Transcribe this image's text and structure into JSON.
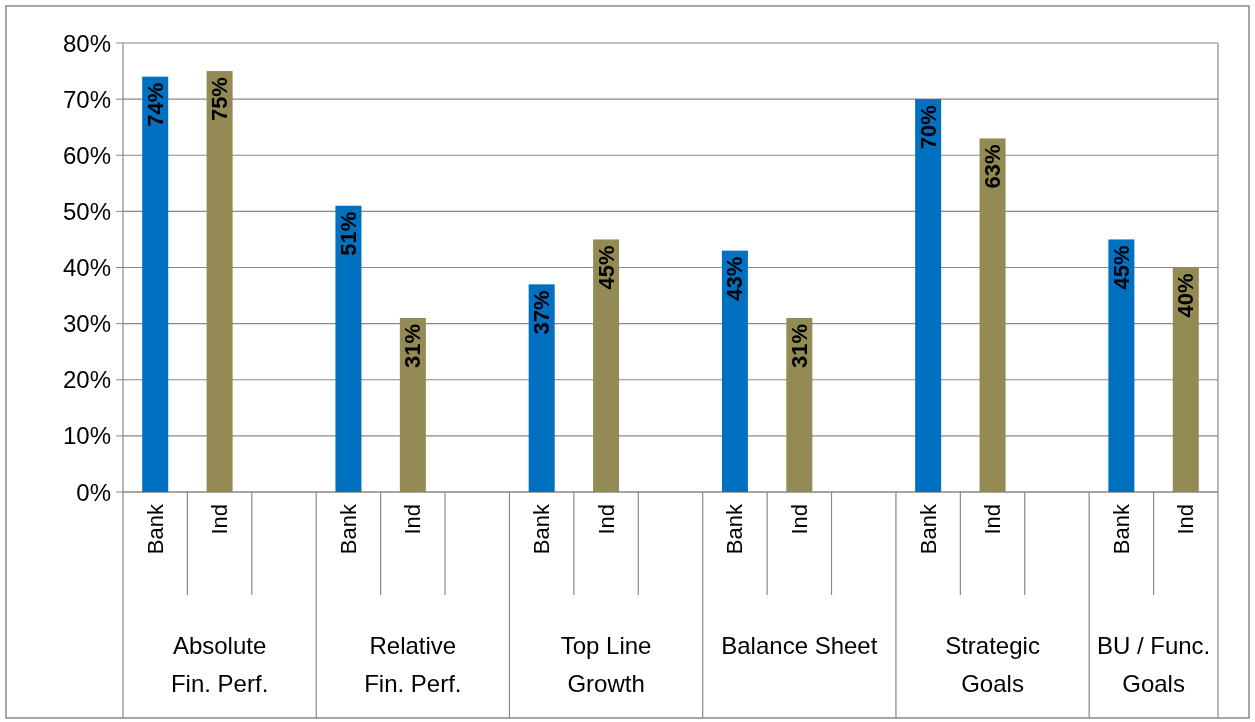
{
  "chart_data": {
    "type": "bar",
    "categories": [
      "Bank",
      "Ind",
      null,
      "Bank",
      "Ind",
      null,
      "Bank",
      "Ind",
      null,
      "Bank",
      "Ind",
      null,
      "Bank",
      "Ind",
      null,
      "Bank",
      "Ind"
    ],
    "values": [
      74,
      75,
      null,
      51,
      31,
      null,
      37,
      45,
      null,
      43,
      31,
      null,
      70,
      63,
      null,
      45,
      40
    ],
    "colors": [
      "#0070c0",
      "#948a54",
      null,
      "#0070c0",
      "#948a54",
      null,
      "#0070c0",
      "#948a54",
      null,
      "#0070c0",
      "#948a54",
      null,
      "#0070c0",
      "#948a54",
      null,
      "#0070c0",
      "#948a54"
    ],
    "value_labels": [
      "74%",
      "75%",
      null,
      "51%",
      "31%",
      null,
      "37%",
      "45%",
      null,
      "43%",
      "31%",
      null,
      "70%",
      "63%",
      null,
      "45%",
      "40%"
    ],
    "annotations": [
      "Absolute\nFin. Perf.",
      "Relative\nFin. Perf.",
      "Top Line\nGrowth",
      "Balance Sheet",
      "Strategic\nGoals",
      "BU / Func.\nGoals"
    ],
    "ylim": [
      0,
      80
    ],
    "yticks": [
      {
        "value": 0,
        "label": "0%"
      },
      {
        "value": 10,
        "label": "10%"
      },
      {
        "value": 20,
        "label": "20%"
      },
      {
        "value": 30,
        "label": "30%"
      },
      {
        "value": 40,
        "label": "40%"
      },
      {
        "value": 50,
        "label": "50%"
      },
      {
        "value": 60,
        "label": "60%"
      },
      {
        "value": 70,
        "label": "70%"
      },
      {
        "value": 80,
        "label": "80%"
      }
    ],
    "grid": "y"
  }
}
